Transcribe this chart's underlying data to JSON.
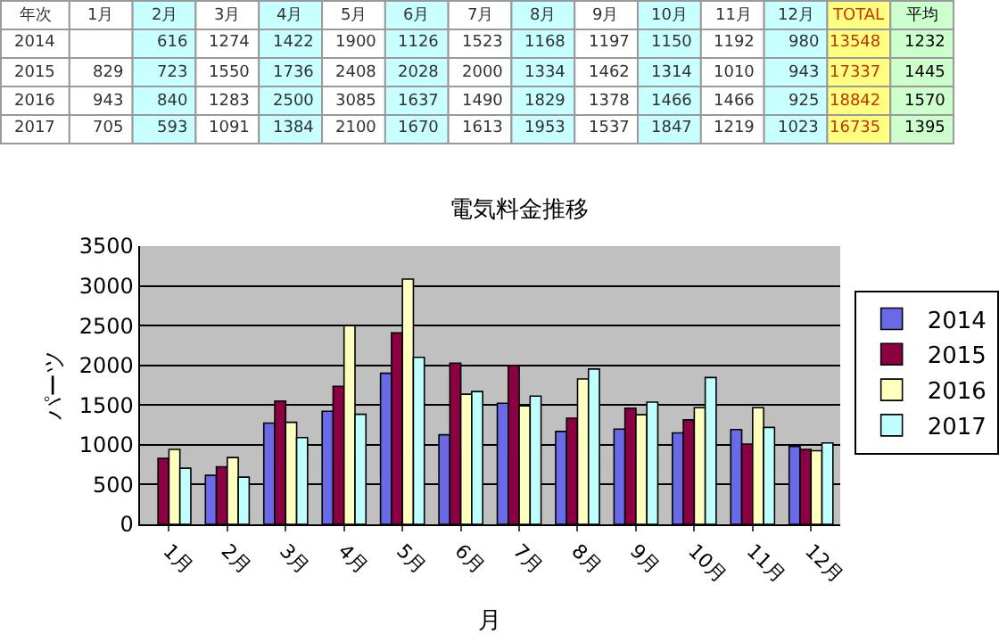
{
  "chart_data": [
    {
      "type": "heatmap",
      "ylabel": "年次",
      "data_labels": true,
      "categories": [
        "1月",
        "2月",
        "3月",
        "4月",
        "5月",
        "6月",
        "7月",
        "8月",
        "9月",
        "10月",
        "11月",
        "12月",
        "TOTAL",
        "平均"
      ],
      "y_categories": [
        "2014",
        "2015",
        "2016",
        "2017"
      ],
      "cells": [
        [
          null,
          616,
          1274,
          1422,
          1900,
          1126,
          1523,
          1168,
          1197,
          1150,
          1192,
          980,
          13548,
          1232
        ],
        [
          829,
          723,
          1550,
          1736,
          2408,
          2028,
          2000,
          1334,
          1462,
          1314,
          1010,
          943,
          17337,
          1445
        ],
        [
          943,
          840,
          1283,
          2500,
          3085,
          1637,
          1490,
          1829,
          1378,
          1466,
          1466,
          925,
          18842,
          1570
        ],
        [
          705,
          593,
          1091,
          1384,
          2100,
          1670,
          1613,
          1953,
          1537,
          1847,
          1219,
          1023,
          16735,
          1395
        ]
      ]
    },
    {
      "type": "bar",
      "title": "電気料金推移",
      "xlabel": "月",
      "ylabel": "パーツ",
      "categories": [
        "1月",
        "2月",
        "3月",
        "4月",
        "5月",
        "6月",
        "7月",
        "8月",
        "9月",
        "10月",
        "11月",
        "12月"
      ],
      "series": [
        {
          "name": "2014",
          "color": "#6a6ae8",
          "values": [
            null,
            616,
            1274,
            1422,
            1900,
            1126,
            1523,
            1168,
            1197,
            1150,
            1192,
            980
          ]
        },
        {
          "name": "2015",
          "color": "#8b0042",
          "values": [
            829,
            723,
            1550,
            1736,
            2408,
            2028,
            2000,
            1334,
            1462,
            1314,
            1010,
            943
          ]
        },
        {
          "name": "2016",
          "color": "#ffffc0",
          "values": [
            943,
            840,
            1283,
            2500,
            3085,
            1637,
            1490,
            1829,
            1378,
            1466,
            1466,
            925
          ]
        },
        {
          "name": "2017",
          "color": "#c0ffff",
          "values": [
            705,
            593,
            1091,
            1384,
            2100,
            1670,
            1613,
            1953,
            1537,
            1847,
            1219,
            1023
          ]
        }
      ],
      "ylim": [
        0,
        3500
      ],
      "yticks": [
        0,
        500,
        1000,
        1500,
        2000,
        2500,
        3000,
        3500
      ],
      "grid": "y",
      "legend": "right"
    }
  ]
}
